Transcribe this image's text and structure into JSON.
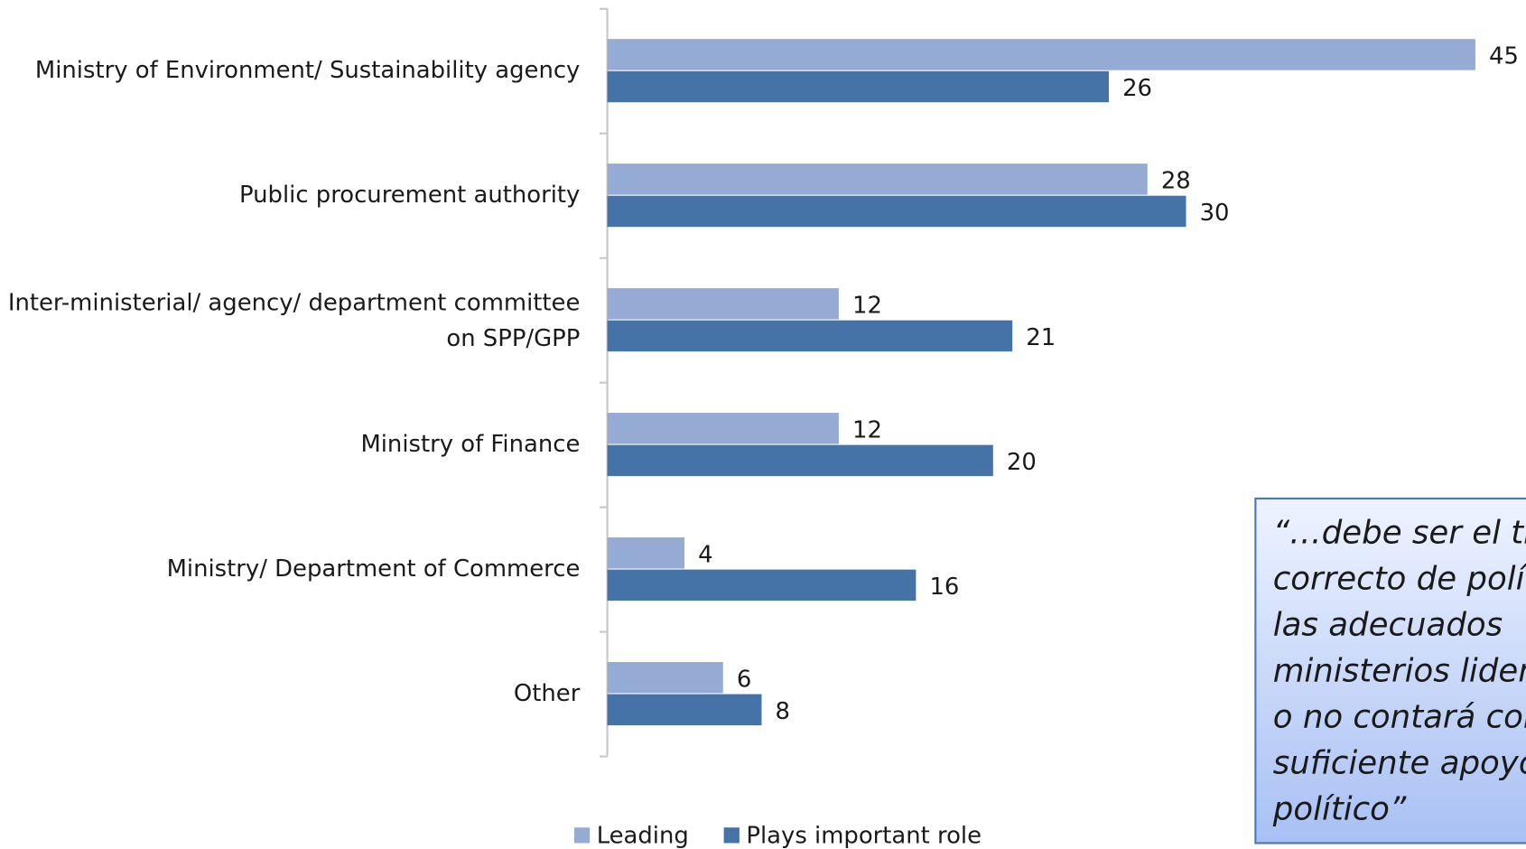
{
  "chart_data": {
    "type": "bar",
    "orientation": "horizontal",
    "categories": [
      "Ministry of Environment/ Sustainability agency",
      "Public procurement authority",
      "Inter-ministerial/ agency/ department committee\non SPP/GPP",
      "Ministry of Finance",
      "Ministry/ Department of Commerce",
      "Other"
    ],
    "series": [
      {
        "name": "Leading",
        "color": "#95abd3",
        "values": [
          45,
          28,
          12,
          12,
          4,
          6
        ]
      },
      {
        "name": "Plays important role",
        "color": "#4573a7",
        "values": [
          26,
          30,
          21,
          20,
          16,
          8
        ]
      }
    ],
    "xlim": [
      0,
      45
    ],
    "legend": "bottom",
    "annotation": [
      "“…debe ser el tip",
      "correcto de polít",
      "las adecuados",
      "ministerios lidera",
      "o no contará con",
      "suficiente apoyo",
      "político”"
    ]
  }
}
